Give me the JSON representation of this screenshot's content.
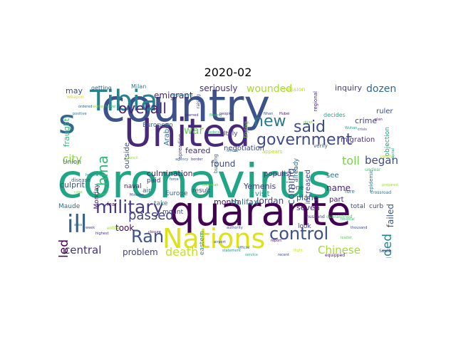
{
  "title": "2020-02",
  "palette": {
    "dark_purple": "#440154",
    "indigo": "#472d7b",
    "blue": "#3b528b",
    "steel": "#2c728e",
    "teal": "#21918c",
    "green": "#28ae80",
    "lime": "#5ec962",
    "yellow_green": "#addc30",
    "yellow": "#fde725"
  },
  "words": [
    {
      "text": "coronavirus",
      "color": "#21a685"
    },
    {
      "text": "country",
      "color": "#3b528b"
    },
    {
      "text": "United",
      "color": "#482878"
    },
    {
      "text": "quarante",
      "color": "#440154"
    },
    {
      "text": "s",
      "color": "#31688e"
    },
    {
      "text": "Tibia",
      "color": "#26828e"
    },
    {
      "text": "Nations",
      "color": "#dde318"
    },
    {
      "text": "ill",
      "color": "#35608d"
    },
    {
      "text": "military",
      "color": "#443983"
    },
    {
      "text": "government",
      "color": "#3e4a89"
    },
    {
      "text": "Ran",
      "color": "#3a548c"
    },
    {
      "text": "control",
      "color": "#3b528b"
    },
    {
      "text": "new",
      "color": "#2a788e"
    },
    {
      "text": "said",
      "color": "#3e4c8a"
    },
    {
      "text": "China",
      "color": "#35b779"
    },
    {
      "text": "overall",
      "color": "#482475"
    },
    {
      "text": "passed",
      "color": "#414487"
    },
    {
      "text": "death",
      "color": "#c8e020"
    },
    {
      "text": "central",
      "color": "#46337f"
    },
    {
      "text": "Chinese",
      "color": "#a2da37"
    },
    {
      "text": "city",
      "color": "#90d743"
    },
    {
      "text": "killed",
      "color": "#440154"
    },
    {
      "text": "expanded",
      "color": "#25858e"
    },
    {
      "text": "began",
      "color": "#3e4a89"
    },
    {
      "text": "toll",
      "color": "#7ad151"
    },
    {
      "text": "coming",
      "color": "#39568c"
    },
    {
      "text": "dozen",
      "color": "#31688e"
    },
    {
      "text": "war",
      "color": "#6ece58"
    },
    {
      "text": "problem",
      "color": "#424086"
    },
    {
      "text": "wounded",
      "color": "#a5db36"
    },
    {
      "text": "seriously",
      "color": "#472d7b"
    },
    {
      "text": "emigrant",
      "color": "#481a6c"
    },
    {
      "text": "Jordan",
      "color": "#424186"
    },
    {
      "text": "took",
      "color": "#450559"
    },
    {
      "text": "found",
      "color": "#3f4889"
    },
    {
      "text": "month",
      "color": "#471063"
    },
    {
      "text": "Halifax",
      "color": "#2b748e"
    },
    {
      "text": "Yemenis",
      "color": "#453882"
    },
    {
      "text": "plane",
      "color": "#3b528b"
    },
    {
      "text": "name",
      "color": "#482576"
    },
    {
      "text": "seven",
      "color": "#472a7a"
    },
    {
      "text": "culmination",
      "color": "#482173"
    },
    {
      "text": "negotiation",
      "color": "#3f4788"
    },
    {
      "text": "crime",
      "color": "#414487"
    },
    {
      "text": "inquiry",
      "color": "#443a83"
    },
    {
      "text": "may",
      "color": "#3e4a89"
    },
    {
      "text": "feared",
      "color": "#472c7a"
    },
    {
      "text": "European",
      "color": "#306a8e"
    },
    {
      "text": "Arabia",
      "color": "#2f6c8e"
    },
    {
      "text": "outside",
      "color": "#3c4f8a"
    },
    {
      "text": "populist",
      "color": "#472f7d"
    },
    {
      "text": "visit",
      "color": "#1f968b"
    },
    {
      "text": "increased",
      "color": "#414487"
    },
    {
      "text": "already",
      "color": "#2c718e"
    },
    {
      "text": "failed",
      "color": "#3a548c"
    },
    {
      "text": "part",
      "color": "#482071"
    },
    {
      "text": "see",
      "color": "#2d708e"
    },
    {
      "text": "decides",
      "color": "#22a785"
    },
    {
      "text": "migration",
      "color": "#46327e"
    },
    {
      "text": "ruler",
      "color": "#3d4e8a"
    },
    {
      "text": "objection",
      "color": "#20a386"
    },
    {
      "text": "fraught",
      "color": "#37b878"
    },
    {
      "text": "Union",
      "color": "#2a778e"
    },
    {
      "text": "culprit",
      "color": "#39558c"
    },
    {
      "text": "Maude",
      "color": "#2d718e"
    },
    {
      "text": "Monday",
      "color": "#482677"
    },
    {
      "text": "naval",
      "color": "#471365"
    },
    {
      "text": "paid",
      "color": "#46307e"
    },
    {
      "text": "air",
      "color": "#34618d"
    },
    {
      "text": "Europe",
      "color": "#32648e"
    },
    {
      "text": "mount",
      "color": "#3d4d8a"
    },
    {
      "text": "eastern",
      "color": "#1fa088"
    },
    {
      "text": "result",
      "color": "#3f4788"
    },
    {
      "text": "take",
      "color": "#2a788e"
    },
    {
      "text": "look",
      "color": "#414287"
    },
    {
      "text": "total",
      "color": "#3b528b"
    },
    {
      "text": "curb",
      "color": "#404588"
    },
    {
      "text": "One",
      "color": "#3d4e8a"
    },
    {
      "text": "Italy",
      "color": "#3e4989"
    },
    {
      "text": "getting",
      "color": "#35608d"
    },
    {
      "text": "Milan",
      "color": "#25848e"
    },
    {
      "text": "mission",
      "color": "#bddf26"
    },
    {
      "text": "trying",
      "color": "#75d054"
    },
    {
      "text": "buzzing",
      "color": "#33638d"
    },
    {
      "text": "spreading",
      "color": "#46337f"
    },
    {
      "text": "disease",
      "color": "#31688e"
    },
    {
      "text": "fear",
      "color": "#440154"
    },
    {
      "text": "regional",
      "color": "#482475"
    },
    {
      "text": "appears",
      "color": "#b5de2b"
    },
    {
      "text": "verify",
      "color": "#38588c"
    },
    {
      "text": "South",
      "color": "#3b528b"
    },
    {
      "text": "epidemic",
      "color": "#2e6f8e"
    },
    {
      "text": "unclear",
      "color": "#4ac16d"
    },
    {
      "text": "crossroad",
      "color": "#2a768e"
    },
    {
      "text": "quarantined",
      "color": "#50c46a"
    },
    {
      "text": "husband",
      "color": "#472d7b"
    },
    {
      "text": "equipped",
      "color": "#481668"
    },
    {
      "text": "neighboring",
      "color": "#26818e"
    },
    {
      "text": "weapon",
      "color": "#ead71f"
    },
    {
      "text": "raising",
      "color": "#3f4889"
    },
    {
      "text": "federal",
      "color": "#32b67a"
    },
    {
      "text": "quiet",
      "color": "#65cb5e"
    },
    {
      "text": "official",
      "color": "#2c728e"
    },
    {
      "text": "capital",
      "color": "#1e9b8a"
    },
    {
      "text": "rapidly",
      "color": "#bade28"
    },
    {
      "text": "prepared",
      "color": "#9bd93c"
    },
    {
      "text": "ordered",
      "color": "#31688e"
    },
    {
      "text": "warned",
      "color": "#482878"
    },
    {
      "text": "Boeing",
      "color": "#42be71"
    },
    {
      "text": "worker",
      "color": "#8bd646"
    },
    {
      "text": "entire",
      "color": "#9dd93b"
    },
    {
      "text": "highest",
      "color": "#46337f"
    },
    {
      "text": "Minister",
      "color": "#3f4788"
    },
    {
      "text": "service",
      "color": "#29af7f"
    },
    {
      "text": "recent",
      "color": "#3d4d8a"
    },
    {
      "text": "flight",
      "color": "#d2e21b"
    },
    {
      "text": "fore",
      "color": "#2a788e"
    },
    {
      "text": "hospital",
      "color": "#39b977"
    },
    {
      "text": "thousand",
      "color": "#3e4a89"
    },
    {
      "text": "leader",
      "color": "#5ec962"
    },
    {
      "text": "airport",
      "color": "#424086"
    },
    {
      "text": "statement",
      "color": "#21918c"
    },
    {
      "text": "authority",
      "color": "#3c4f8a"
    },
    {
      "text": "border",
      "color": "#453781"
    },
    {
      "text": "outbreak",
      "color": "#6ccd5a"
    },
    {
      "text": "positive",
      "color": "#2c738e"
    },
    {
      "text": "travel",
      "color": "#25ac82"
    },
    {
      "text": "closure",
      "color": "#48186a"
    },
    {
      "text": "council",
      "color": "#93d741"
    },
    {
      "text": "agency",
      "color": "#34618d"
    },
    {
      "text": "force",
      "color": "#3b528b"
    },
    {
      "text": "people",
      "color": "#482677"
    },
    {
      "text": "official",
      "color": "#2d708e"
    },
    {
      "text": "Nhan",
      "color": "#3e4a89"
    },
    {
      "text": "Hubei",
      "color": "#481769"
    },
    {
      "text": "Wuhan",
      "color": "#1fa187"
    },
    {
      "text": "crisis",
      "color": "#3b528b"
    },
    {
      "text": "plan",
      "color": "#481f70"
    },
    {
      "text": "health",
      "color": "#20928c"
    },
    {
      "text": "case",
      "color": "#7fd34e"
    },
    {
      "text": "week",
      "color": "#404688"
    },
    {
      "text": "area",
      "color": "#2b758e"
    },
    {
      "text": "report",
      "color": "#471164"
    }
  ]
}
